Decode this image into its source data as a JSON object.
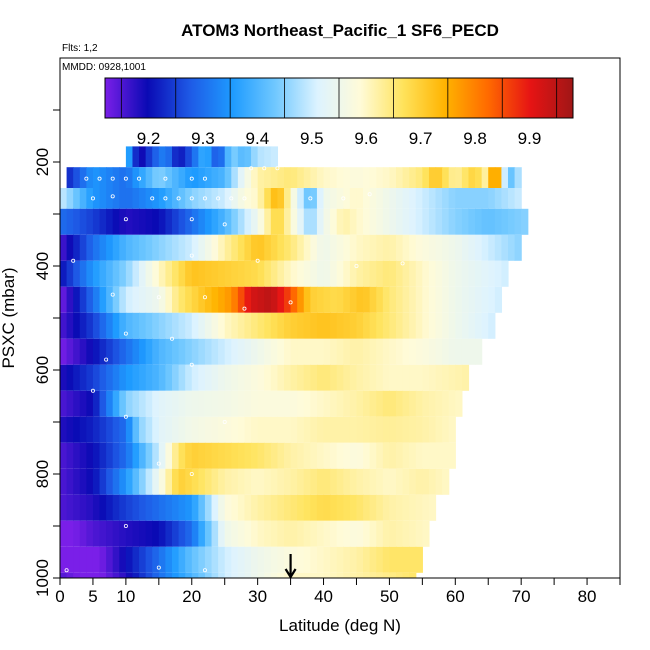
{
  "chart_data": {
    "type": "heatmap",
    "title": "ATOM3 Northeast_Pacific_1 SF6_PECD",
    "flights_label": "Flts: 1,2",
    "dates_label": "MMDD: 0928,1001",
    "xlabel": "Latitude (deg N)",
    "ylabel": "PSXC (mbar)",
    "xlim": [
      0,
      85
    ],
    "ylim": [
      1000,
      0
    ],
    "x_ticks": [
      0,
      5,
      10,
      20,
      30,
      40,
      50,
      60,
      70,
      80
    ],
    "y_ticks": [
      200,
      400,
      600,
      800,
      1000
    ],
    "colorbar": {
      "range": [
        9.12,
        9.98
      ],
      "ticks": [
        9.2,
        9.3,
        9.4,
        9.5,
        9.6,
        9.7,
        9.8,
        9.9
      ],
      "stops": [
        "#7a1fe8",
        "#0a0ab4",
        "#1e5ae6",
        "#1e9bff",
        "#70c8ff",
        "#ddf3ff",
        "#fffbd8",
        "#ffe35c",
        "#ffb300",
        "#ff6a00",
        "#e61414",
        "#a01616"
      ]
    },
    "marker_latitude": 35,
    "layers": [
      {
        "p": [
          170,
          210
        ],
        "lat": [
          10,
          33
        ],
        "kx": [
          10,
          12,
          14,
          16,
          18,
          20,
          22,
          24,
          26,
          28,
          30,
          33
        ],
        "kv": [
          9.42,
          9.17,
          9.27,
          9.33,
          9.2,
          9.28,
          9.4,
          9.25,
          9.45,
          9.4,
          9.48,
          9.5
        ]
      },
      {
        "p": [
          210,
          250
        ],
        "lat": [
          1,
          70
        ],
        "kx": [
          1,
          5,
          10,
          15,
          20,
          25,
          28,
          30,
          35,
          40,
          45,
          50,
          55,
          57,
          60,
          63,
          65,
          66,
          67,
          68,
          70
        ],
        "kv": [
          9.22,
          9.35,
          9.3,
          9.45,
          9.35,
          9.4,
          9.55,
          9.62,
          9.65,
          9.6,
          9.58,
          9.6,
          9.65,
          9.72,
          9.62,
          9.7,
          9.6,
          9.9,
          9.6,
          9.4,
          9.5
        ]
      },
      {
        "p": [
          250,
          290
        ],
        "lat": [
          0,
          70
        ],
        "kx": [
          0,
          5,
          10,
          15,
          20,
          25,
          28,
          30,
          33,
          35,
          38,
          40,
          45,
          50,
          55,
          60,
          65,
          70
        ],
        "kv": [
          9.5,
          9.35,
          9.3,
          9.35,
          9.45,
          9.5,
          9.58,
          9.6,
          9.75,
          9.6,
          9.4,
          9.55,
          9.6,
          9.55,
          9.5,
          9.45,
          9.45,
          9.5
        ]
      },
      {
        "p": [
          290,
          340
        ],
        "lat": [
          0,
          71
        ],
        "kx": [
          0,
          5,
          10,
          15,
          20,
          25,
          30,
          33,
          35,
          38,
          40,
          43,
          45,
          50,
          55,
          60,
          65,
          71
        ],
        "kv": [
          9.3,
          9.25,
          9.18,
          9.2,
          9.3,
          9.4,
          9.55,
          9.7,
          9.6,
          9.45,
          9.55,
          9.62,
          9.6,
          9.55,
          9.5,
          9.45,
          9.42,
          9.45
        ]
      },
      {
        "p": [
          340,
          390
        ],
        "lat": [
          0,
          70
        ],
        "kx": [
          0,
          5,
          10,
          15,
          20,
          25,
          30,
          35,
          40,
          45,
          50,
          55,
          60,
          65,
          70
        ],
        "kv": [
          9.15,
          9.3,
          9.4,
          9.45,
          9.5,
          9.62,
          9.72,
          9.65,
          9.55,
          9.6,
          9.62,
          9.58,
          9.55,
          9.5,
          9.45
        ]
      },
      {
        "p": [
          390,
          440
        ],
        "lat": [
          0,
          68
        ],
        "kx": [
          0,
          5,
          10,
          15,
          20,
          25,
          30,
          35,
          40,
          45,
          50,
          55,
          60,
          68
        ],
        "kv": [
          9.2,
          9.35,
          9.45,
          9.6,
          9.72,
          9.7,
          9.68,
          9.6,
          9.55,
          9.62,
          9.65,
          9.6,
          9.55,
          9.5
        ]
      },
      {
        "p": [
          440,
          490
        ],
        "lat": [
          0,
          67
        ],
        "kx": [
          0,
          5,
          10,
          15,
          18,
          22,
          26,
          29,
          32,
          35,
          38,
          42,
          46,
          50,
          55,
          60,
          67
        ],
        "kv": [
          9.12,
          9.3,
          9.5,
          9.55,
          9.65,
          9.72,
          9.78,
          9.92,
          9.95,
          9.85,
          9.7,
          9.68,
          9.72,
          9.65,
          9.6,
          9.55,
          9.5
        ]
      },
      {
        "p": [
          490,
          540
        ],
        "lat": [
          0,
          66
        ],
        "kx": [
          0,
          5,
          10,
          15,
          20,
          25,
          30,
          35,
          40,
          45,
          50,
          55,
          60,
          66
        ],
        "kv": [
          9.15,
          9.25,
          9.4,
          9.45,
          9.5,
          9.6,
          9.65,
          9.7,
          9.72,
          9.7,
          9.65,
          9.6,
          9.55,
          9.5
        ]
      },
      {
        "p": [
          540,
          590
        ],
        "lat": [
          0,
          64
        ],
        "kx": [
          0,
          5,
          10,
          15,
          20,
          25,
          30,
          35,
          40,
          45,
          50,
          55,
          60,
          64
        ],
        "kv": [
          9.12,
          9.2,
          9.3,
          9.4,
          9.45,
          9.5,
          9.55,
          9.6,
          9.6,
          9.62,
          9.6,
          9.58,
          9.55,
          9.55
        ]
      },
      {
        "p": [
          590,
          640
        ],
        "lat": [
          0,
          62
        ],
        "kx": [
          0,
          5,
          10,
          15,
          20,
          25,
          30,
          35,
          40,
          45,
          50,
          55,
          62
        ],
        "kv": [
          9.18,
          9.25,
          9.35,
          9.4,
          9.5,
          9.55,
          9.58,
          9.62,
          9.65,
          9.62,
          9.6,
          9.6,
          9.62
        ]
      },
      {
        "p": [
          640,
          690
        ],
        "lat": [
          0,
          61
        ],
        "kx": [
          0,
          5,
          10,
          15,
          20,
          25,
          30,
          35,
          40,
          45,
          50,
          55,
          61
        ],
        "kv": [
          9.15,
          9.2,
          9.45,
          9.52,
          9.55,
          9.56,
          9.58,
          9.58,
          9.6,
          9.62,
          9.65,
          9.62,
          9.6
        ]
      },
      {
        "p": [
          690,
          740
        ],
        "lat": [
          0,
          60
        ],
        "kx": [
          0,
          5,
          10,
          12,
          15,
          20,
          25,
          30,
          35,
          40,
          45,
          50,
          55,
          60
        ],
        "kv": [
          9.18,
          9.22,
          9.3,
          9.45,
          9.52,
          9.56,
          9.58,
          9.6,
          9.6,
          9.62,
          9.62,
          9.63,
          9.62,
          9.6
        ]
      },
      {
        "p": [
          740,
          790
        ],
        "lat": [
          0,
          60
        ],
        "kx": [
          0,
          5,
          10,
          15,
          18,
          20,
          25,
          30,
          35,
          40,
          45,
          50,
          55,
          60
        ],
        "kv": [
          9.15,
          9.2,
          9.3,
          9.5,
          9.66,
          9.7,
          9.68,
          9.66,
          9.62,
          9.6,
          9.58,
          9.62,
          9.6,
          9.6
        ]
      },
      {
        "p": [
          790,
          840
        ],
        "lat": [
          0,
          59
        ],
        "kx": [
          0,
          5,
          10,
          15,
          18,
          20,
          25,
          30,
          35,
          40,
          45,
          50,
          55,
          59
        ],
        "kv": [
          9.15,
          9.2,
          9.35,
          9.55,
          9.7,
          9.68,
          9.62,
          9.6,
          9.62,
          9.65,
          9.62,
          9.6,
          9.62,
          9.6
        ]
      },
      {
        "p": [
          840,
          890
        ],
        "lat": [
          0,
          57
        ],
        "kx": [
          0,
          5,
          10,
          15,
          20,
          25,
          30,
          35,
          40,
          45,
          50,
          57
        ],
        "kv": [
          9.15,
          9.18,
          9.25,
          9.3,
          9.35,
          9.58,
          9.62,
          9.65,
          9.68,
          9.66,
          9.62,
          9.6
        ]
      },
      {
        "p": [
          890,
          940
        ],
        "lat": [
          0,
          56
        ],
        "kx": [
          0,
          5,
          10,
          15,
          20,
          25,
          30,
          35,
          40,
          45,
          50,
          56
        ],
        "kv": [
          9.1,
          9.15,
          9.18,
          9.2,
          9.3,
          9.55,
          9.6,
          9.62,
          9.6,
          9.58,
          9.62,
          9.6
        ]
      },
      {
        "p": [
          940,
          990
        ],
        "lat": [
          0,
          55
        ],
        "kx": [
          0,
          5,
          10,
          15,
          20,
          25,
          30,
          35,
          40,
          45,
          50,
          55
        ],
        "kv": [
          9.12,
          9.1,
          9.2,
          9.3,
          9.42,
          9.5,
          9.55,
          9.58,
          9.6,
          9.62,
          9.66,
          9.66
        ]
      },
      {
        "p": [
          990,
          1010
        ],
        "lat": [
          0,
          54
        ],
        "kx": [
          0,
          5,
          10,
          15,
          20,
          25,
          30,
          35,
          40,
          45,
          50,
          54
        ],
        "kv": [
          9.15,
          9.1,
          9.18,
          9.3,
          9.4,
          9.5,
          9.55,
          9.6,
          9.6,
          9.62,
          9.64,
          9.66
        ]
      }
    ],
    "samples": [
      {
        "lat": 4,
        "p": 232
      },
      {
        "lat": 6,
        "p": 232
      },
      {
        "lat": 8,
        "p": 232
      },
      {
        "lat": 10,
        "p": 232
      },
      {
        "lat": 12,
        "p": 232
      },
      {
        "lat": 16,
        "p": 232
      },
      {
        "lat": 20,
        "p": 232
      },
      {
        "lat": 22,
        "p": 232
      },
      {
        "lat": 29,
        "p": 212
      },
      {
        "lat": 31,
        "p": 212
      },
      {
        "lat": 33,
        "p": 212
      },
      {
        "lat": 5,
        "p": 270
      },
      {
        "lat": 8,
        "p": 266
      },
      {
        "lat": 14,
        "p": 270
      },
      {
        "lat": 16,
        "p": 270
      },
      {
        "lat": 18,
        "p": 270
      },
      {
        "lat": 20,
        "p": 270
      },
      {
        "lat": 22,
        "p": 270
      },
      {
        "lat": 24,
        "p": 270
      },
      {
        "lat": 26,
        "p": 270
      },
      {
        "lat": 28,
        "p": 270
      },
      {
        "lat": 38,
        "p": 270
      },
      {
        "lat": 43,
        "p": 270
      },
      {
        "lat": 47,
        "p": 262
      },
      {
        "lat": 10,
        "p": 310
      },
      {
        "lat": 20,
        "p": 310
      },
      {
        "lat": 25,
        "p": 320
      },
      {
        "lat": 2,
        "p": 390
      },
      {
        "lat": 20,
        "p": 380
      },
      {
        "lat": 30,
        "p": 390
      },
      {
        "lat": 45,
        "p": 400
      },
      {
        "lat": 52,
        "p": 395
      },
      {
        "lat": 8,
        "p": 455
      },
      {
        "lat": 15,
        "p": 460
      },
      {
        "lat": 22,
        "p": 460
      },
      {
        "lat": 28,
        "p": 482
      },
      {
        "lat": 35,
        "p": 470
      },
      {
        "lat": 10,
        "p": 530
      },
      {
        "lat": 17,
        "p": 540
      },
      {
        "lat": 7,
        "p": 580
      },
      {
        "lat": 20,
        "p": 590
      },
      {
        "lat": 5,
        "p": 640
      },
      {
        "lat": 10,
        "p": 690
      },
      {
        "lat": 25,
        "p": 700
      },
      {
        "lat": 15,
        "p": 780
      },
      {
        "lat": 20,
        "p": 800
      },
      {
        "lat": 10,
        "p": 900
      },
      {
        "lat": 15,
        "p": 980
      },
      {
        "lat": 22,
        "p": 985
      },
      {
        "lat": 1,
        "p": 985
      }
    ]
  }
}
